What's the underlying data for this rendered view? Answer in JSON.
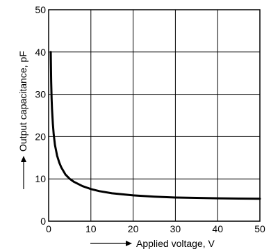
{
  "chart_data": {
    "type": "line",
    "title": "",
    "xlabel": "Applied voltage, V",
    "ylabel": "Output capacitance, pF",
    "xlim": [
      0,
      50
    ],
    "ylim": [
      0,
      50
    ],
    "xticks": [
      0,
      10,
      20,
      30,
      40,
      50
    ],
    "yticks": [
      0,
      10,
      20,
      30,
      40,
      50
    ],
    "x_tick_labels": [
      "0",
      "10",
      "20",
      "30",
      "40",
      "50"
    ],
    "y_tick_labels": [
      "0",
      "10",
      "20",
      "30",
      "40",
      "50"
    ],
    "grid": true,
    "legend": "none",
    "colors": {
      "line": "#000000",
      "grid": "#000000"
    },
    "series": [
      {
        "x": [
          0.5,
          0.6,
          0.7,
          0.8,
          1,
          1.2,
          1.5,
          2,
          2.5,
          3,
          4,
          5,
          6,
          8,
          10,
          12,
          15,
          20,
          25,
          30,
          35,
          40,
          45,
          50
        ],
        "y": [
          40,
          33,
          29,
          26.5,
          23,
          20.5,
          18,
          15.5,
          13.9,
          12.7,
          11,
          10,
          9.3,
          8.3,
          7.6,
          7.1,
          6.6,
          6.1,
          5.8,
          5.6,
          5.5,
          5.4,
          5.35,
          5.3
        ]
      }
    ]
  }
}
